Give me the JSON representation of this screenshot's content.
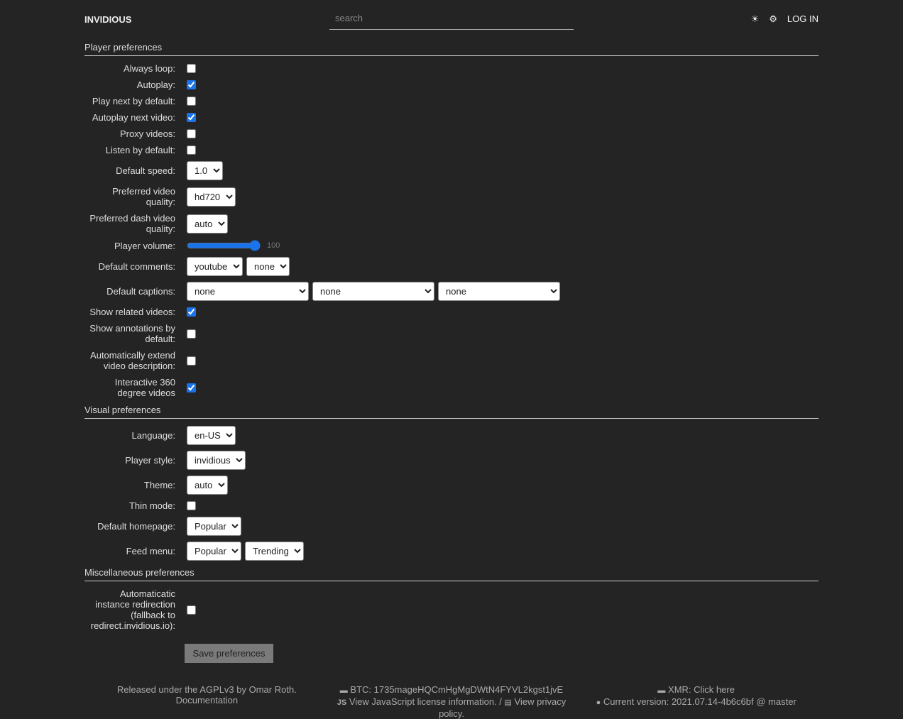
{
  "header": {
    "brand": "INVIDIOUS",
    "search_placeholder": "search",
    "theme_icon": "☀",
    "settings_icon": "⚙",
    "login": "LOG IN"
  },
  "sections": [
    {
      "title": "Player preferences",
      "fields": [
        {
          "label": "Always loop:",
          "type": "checkbox",
          "checked": false
        },
        {
          "label": "Autoplay:",
          "type": "checkbox",
          "checked": true
        },
        {
          "label": "Play next by default:",
          "type": "checkbox",
          "checked": false
        },
        {
          "label": "Autoplay next video:",
          "type": "checkbox",
          "checked": true
        },
        {
          "label": "Proxy videos:",
          "type": "checkbox",
          "checked": false
        },
        {
          "label": "Listen by default:",
          "type": "checkbox",
          "checked": false
        },
        {
          "label": "Default speed:",
          "type": "select",
          "selected": [
            "1.0"
          ]
        },
        {
          "label": "Preferred video quality:",
          "type": "select",
          "selected": [
            "hd720"
          ]
        },
        {
          "label": "Preferred dash video quality:",
          "type": "select",
          "selected": [
            "auto"
          ]
        },
        {
          "label": "Player volume:",
          "type": "range",
          "value": 100
        },
        {
          "label": "Default comments:",
          "type": "select",
          "selected": [
            "youtube",
            "none"
          ]
        },
        {
          "label": "Default captions:",
          "type": "select",
          "selected": [
            "none",
            "none",
            "none"
          ]
        },
        {
          "label": "Show related videos:",
          "type": "checkbox",
          "checked": true
        },
        {
          "label": "Show annotations by default:",
          "type": "checkbox",
          "checked": false
        },
        {
          "label": "Automatically extend video description:",
          "type": "checkbox",
          "checked": false
        },
        {
          "label": "Interactive 360 degree videos",
          "type": "checkbox",
          "checked": true
        }
      ]
    },
    {
      "title": "Visual preferences",
      "fields": [
        {
          "label": "Language:",
          "type": "select",
          "selected": [
            "en-US"
          ]
        },
        {
          "label": "Player style:",
          "type": "select",
          "selected": [
            "invidious"
          ]
        },
        {
          "label": "Theme:",
          "type": "select",
          "selected": [
            "auto"
          ]
        },
        {
          "label": "Thin mode:",
          "type": "checkbox",
          "checked": false
        },
        {
          "label": "Default homepage:",
          "type": "select",
          "selected": [
            "Popular"
          ]
        },
        {
          "label": "Feed menu:",
          "type": "select",
          "selected": [
            "Popular",
            "Trending"
          ]
        }
      ]
    },
    {
      "title": "Miscellaneous preferences",
      "fields": [
        {
          "label": "Automaticatic instance redirection (fallback to redirect.invidious.io):",
          "type": "checkbox",
          "checked": false
        }
      ]
    }
  ],
  "save": "Save preferences",
  "footer": {
    "license": "Released under the AGPLv3 by Omar Roth.",
    "documentation": "Documentation",
    "btc": "BTC: 1735mageHQCmHgMgDWtN4FYVL2kgst1jvE",
    "js_license": "View JavaScript license information. /",
    "privacy": "View privacy policy.",
    "xmr": "XMR: Click here",
    "version": "Current version: 2021.07.14-4b6c6bf @ master"
  }
}
